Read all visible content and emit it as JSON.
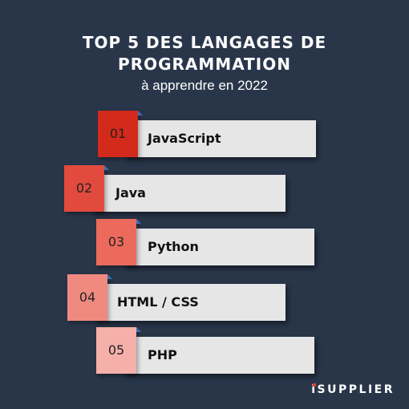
{
  "header": {
    "title_line1": "TOP 5 DES LANGAGES DE",
    "title_line2": "PROGRAMMATION",
    "subtitle": "à apprendre en 2022"
  },
  "ranking": [
    {
      "rank": "01",
      "language": "JavaScript",
      "badge_color": "#d32a1c"
    },
    {
      "rank": "02",
      "language": "Java",
      "badge_color": "#e24a3d"
    },
    {
      "rank": "03",
      "language": "Python",
      "badge_color": "#eb6a5c"
    },
    {
      "rank": "04",
      "language": "HTML / CSS",
      "badge_color": "#f08a80"
    },
    {
      "rank": "05",
      "language": "PHP",
      "badge_color": "#f5b0a9"
    }
  ],
  "brand": {
    "first_letter": "i",
    "rest": "SUPPLIER",
    "accent_color": "#e63f2f"
  }
}
